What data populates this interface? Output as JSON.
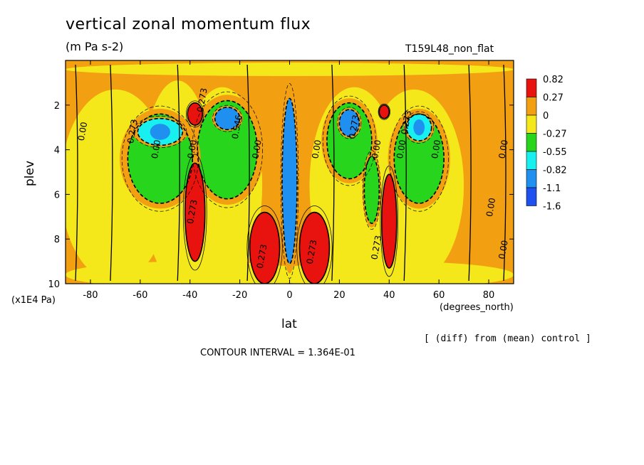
{
  "chart_data": {
    "type": "heatmap",
    "title": "vertical zonal momentum flux",
    "subtitle": "(m Pa s-2)",
    "run_label": "T159L48_non_flat",
    "xlabel": "lat",
    "xunit": "(degrees_north)",
    "ylabel": "plev",
    "yunit": "(x1E4 Pa)",
    "xlim": [
      -90,
      90
    ],
    "ylim": [
      10,
      0
    ],
    "x_ticks": [
      "-80",
      "-60",
      "-40",
      "-20",
      "0",
      "20",
      "40",
      "60",
      "80"
    ],
    "y_ticks": [
      "2",
      "4",
      "6",
      "8",
      "10"
    ],
    "x_tick_values": [
      -80,
      -60,
      -40,
      -20,
      0,
      20,
      40,
      60,
      80
    ],
    "y_tick_values": [
      2,
      4,
      6,
      8,
      10
    ],
    "legend": {
      "placement": "right",
      "levels": [
        "0.82",
        "0.27",
        "0",
        "-0.27",
        "-0.55",
        "-0.82",
        "-1.1",
        "-1.6"
      ],
      "colors": [
        "#e8130e",
        "#f2a012",
        "#f4e81a",
        "#27d61c",
        "#18f0f0",
        "#2090f0",
        "#1e50f0"
      ]
    },
    "contour_labels": [
      {
        "text": "0.00",
        "x": -82,
        "y": 3.2
      },
      {
        "text": "0.00",
        "x": -52.5,
        "y": 4.0
      },
      {
        "text": "0.00",
        "x": -38,
        "y": 4.0
      },
      {
        "text": "0.00",
        "x": -12,
        "y": 4.0
      },
      {
        "text": "0.00",
        "x": 12,
        "y": 4.0
      },
      {
        "text": "0.00",
        "x": 46,
        "y": 4.0
      },
      {
        "text": "0.00",
        "x": 60,
        "y": 4.0
      },
      {
        "text": "0.00",
        "x": 87,
        "y": 4.0
      },
      {
        "text": "0.00",
        "x": 82,
        "y": 6.6
      },
      {
        "text": "0.00",
        "x": 87,
        "y": 8.5
      },
      {
        "text": "0.00",
        "x": 36,
        "y": 4.0
      },
      {
        "text": "0.273",
        "x": -62,
        "y": 3.2
      },
      {
        "text": "0.273",
        "x": -34,
        "y": 1.8
      },
      {
        "text": "0.273",
        "x": -38,
        "y": 6.8
      },
      {
        "text": "0.273",
        "x": 36,
        "y": 8.4
      },
      {
        "text": "0.273",
        "x": 48,
        "y": 2.8
      },
      {
        "text": "0.273",
        "x": -10,
        "y": 8.8
      },
      {
        "text": "0.273",
        "x": 10,
        "y": 8.6
      },
      {
        "text": "0.546",
        "x": -20,
        "y": 3.0
      },
      {
        "text": "0.273",
        "x": 27,
        "y": 3.0
      }
    ],
    "contour_interval_text": "CONTOUR INTERVAL = 1.364E-01",
    "annotation": "[ (diff) from (mean) control ]",
    "regions": [
      {
        "lat": -52,
        "plev": 3.2,
        "width": 9,
        "height": 1.2,
        "value": -0.9
      },
      {
        "lat": -52,
        "plev": 4.4,
        "width": 13,
        "height": 4.0,
        "value": -0.4
      },
      {
        "lat": -38,
        "plev": 2.4,
        "width": 3,
        "height": 1.0,
        "value": 0.9
      },
      {
        "lat": -38,
        "plev": 6.8,
        "width": 4,
        "height": 4.4,
        "value": 0.9
      },
      {
        "lat": -25,
        "plev": 2.6,
        "width": 5,
        "height": 1.0,
        "value": -1.2
      },
      {
        "lat": -25,
        "plev": 4.0,
        "width": 12,
        "height": 4.4,
        "value": -0.4
      },
      {
        "lat": -10,
        "plev": 8.4,
        "width": 6,
        "height": 3.2,
        "value": 0.9
      },
      {
        "lat": 0,
        "plev": 5.4,
        "width": 3,
        "height": 7.4,
        "value": -1.4
      },
      {
        "lat": 10,
        "plev": 8.4,
        "width": 6,
        "height": 3.2,
        "value": 0.9
      },
      {
        "lat": 24,
        "plev": 2.8,
        "width": 4,
        "height": 1.2,
        "value": -1.1
      },
      {
        "lat": 24,
        "plev": 3.6,
        "width": 9,
        "height": 3.4,
        "value": -0.4
      },
      {
        "lat": 33,
        "plev": 5.8,
        "width": 3,
        "height": 3.0,
        "value": -0.6
      },
      {
        "lat": 38,
        "plev": 2.3,
        "width": 2,
        "height": 0.6,
        "value": 0.9
      },
      {
        "lat": 40,
        "plev": 7.2,
        "width": 3,
        "height": 4.2,
        "value": 0.9
      },
      {
        "lat": 52,
        "plev": 3.0,
        "width": 5,
        "height": 1.2,
        "value": -0.9
      },
      {
        "lat": 52,
        "plev": 4.4,
        "width": 10,
        "height": 4.0,
        "value": -0.4
      }
    ]
  }
}
